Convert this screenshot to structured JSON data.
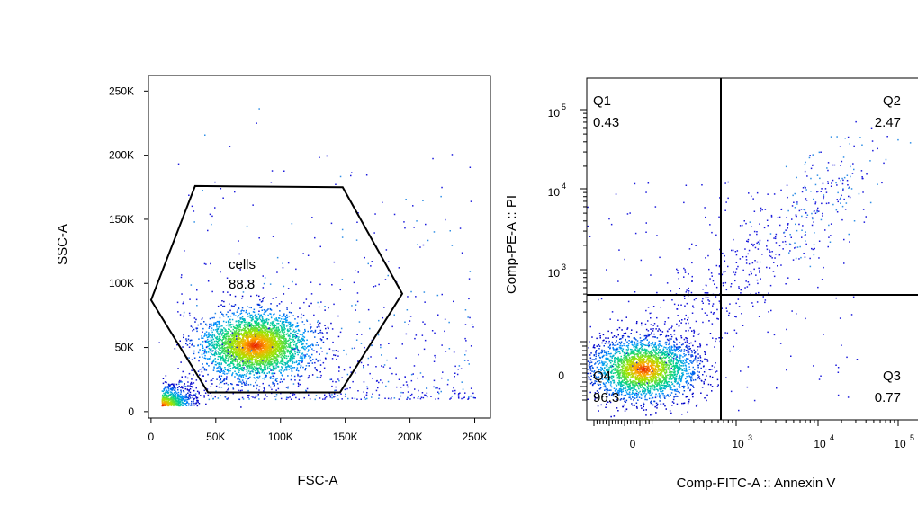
{
  "chart_data": [
    {
      "type": "scatter",
      "title": "",
      "xlabel": "FSC-A",
      "ylabel": "SSC-A",
      "xlim": [
        -2000,
        262144
      ],
      "ylim": [
        -5000,
        262144
      ],
      "xticks": [
        0,
        50000,
        100000,
        150000,
        200000,
        250000
      ],
      "xtick_labels": [
        "0",
        "50K",
        "100K",
        "150K",
        "200K",
        "250K"
      ],
      "yticks": [
        0,
        50000,
        100000,
        150000,
        200000,
        250000
      ],
      "ytick_labels": [
        "0",
        "50K",
        "100K",
        "150K",
        "200K",
        "250K"
      ],
      "density_centroid": {
        "x": 80000,
        "y": 52000
      },
      "debris_centroid": {
        "x": 8000,
        "y": 5000
      },
      "gate": {
        "name": "cells",
        "percent": "88.8",
        "shape": "hexagon",
        "vertices": [
          [
            0,
            87000
          ],
          [
            34000,
            176000
          ],
          [
            148000,
            175000
          ],
          [
            194000,
            92000
          ],
          [
            146000,
            15000
          ],
          [
            44000,
            15000
          ]
        ]
      }
    },
    {
      "type": "scatter",
      "title": "",
      "xlabel": "Comp-FITC-A :: Annexin V",
      "ylabel": "Comp-PE-A :: PI",
      "x_scale": "biexponential",
      "y_scale": "biexponential",
      "x_zero_label": "0",
      "y_zero_label": "0",
      "x_decades": [
        {
          "base": "10",
          "exp": "3"
        },
        {
          "base": "10",
          "exp": "4"
        },
        {
          "base": "10",
          "exp": "5"
        }
      ],
      "y_decades": [
        {
          "base": "10",
          "exp": "3"
        },
        {
          "base": "10",
          "exp": "4"
        },
        {
          "base": "10",
          "exp": "5"
        }
      ],
      "quadrant_threshold": {
        "x": 650,
        "y": 520
      },
      "quadrants": [
        {
          "name": "Q1",
          "percent": "0.43",
          "position": "top-left"
        },
        {
          "name": "Q2",
          "percent": "2.47",
          "position": "top-right"
        },
        {
          "name": "Q3",
          "percent": "0.77",
          "position": "bottom-right"
        },
        {
          "name": "Q4",
          "percent": "96.3",
          "position": "bottom-left"
        }
      ]
    }
  ]
}
